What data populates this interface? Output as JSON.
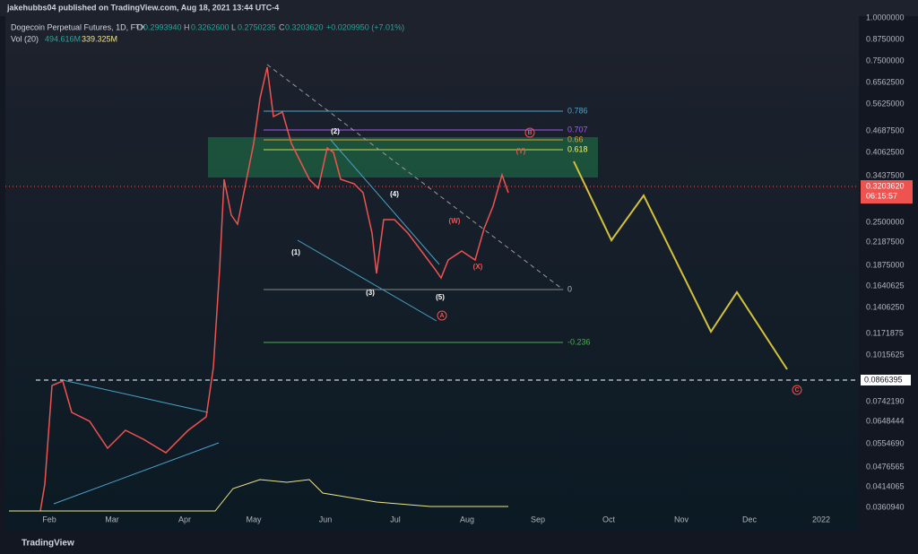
{
  "header": {
    "byline": "jakehubbs04 published on TradingView.com, Aug 18, 2021 13:44 UTC-4"
  },
  "legend": {
    "symbol": "Dogecoin Perpetual Futures, 1D, FTX",
    "open_label": "O",
    "open": "0.2993940",
    "high_label": "H",
    "high": "0.3262600",
    "low_label": "L",
    "low": "0.2750235",
    "close_label": "C",
    "close": "0.3203620",
    "change": "+0.0209950 (+7.01%)",
    "volume_label": "Vol (20)",
    "volume": "494.616M",
    "volume_ma": "339.325M"
  },
  "price_axis": {
    "labels": [
      "1.0000000",
      "0.8750000",
      "0.7500000",
      "0.6562500",
      "0.5625000",
      "0.4687500",
      "0.4062500",
      "0.3437500",
      "0.2500000",
      "0.2187500",
      "0.1875000",
      "0.1640625",
      "0.1406250",
      "0.1171875",
      "0.1015625",
      "0.0742190",
      "0.0648444",
      "0.0554690",
      "0.0476565",
      "0.0414065",
      "0.0360940"
    ],
    "current_price": "0.3203620",
    "countdown": "06:15:57",
    "marker_price": "0.0866395"
  },
  "time_axis": {
    "labels": [
      "Feb",
      "Mar",
      "Apr",
      "May",
      "Jun",
      "Jul",
      "Aug",
      "Sep",
      "Oct",
      "Nov",
      "Dec",
      "2022"
    ]
  },
  "fib_levels": [
    "0.786",
    "0.707",
    "0.66",
    "0.618",
    "0",
    "-0.236"
  ],
  "wave_labels": [
    "(1)",
    "(2)",
    "(3)",
    "(4)",
    "(5)",
    "(W)",
    "(X)",
    "(Y)",
    "A",
    "B",
    "C"
  ],
  "footer": {
    "brand": "TradingView"
  }
}
